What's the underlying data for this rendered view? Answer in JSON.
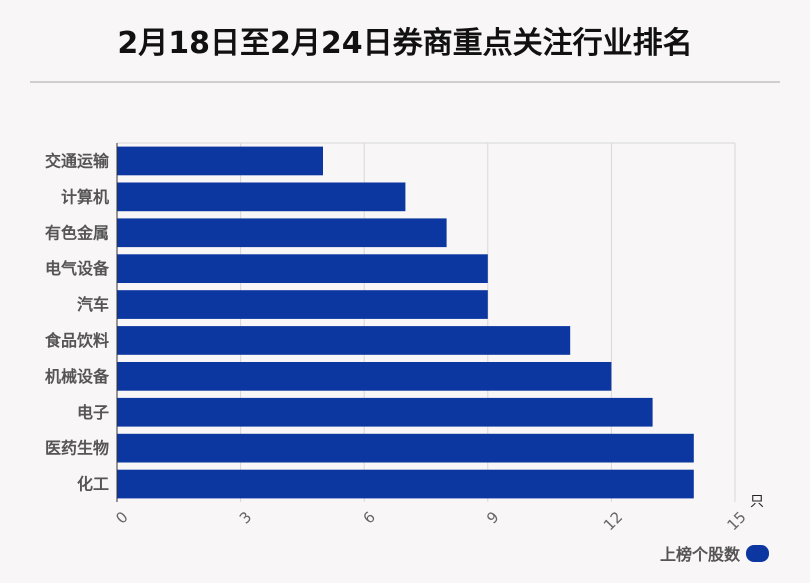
{
  "chart_data": {
    "type": "bar",
    "orientation": "horizontal",
    "title": "2月18日至2月24日券商重点关注行业排名",
    "categories": [
      "交通运输",
      "计算机",
      "有色金属",
      "电气设备",
      "汽车",
      "食品饮料",
      "机械设备",
      "电子",
      "医药生物",
      "化工"
    ],
    "series": [
      {
        "name": "上榜个股数",
        "values": [
          5,
          7,
          8,
          9,
          9,
          11,
          12,
          13,
          14,
          14
        ]
      }
    ],
    "xlim": [
      0,
      15
    ],
    "xticks": [
      "0",
      "3",
      "6",
      "9",
      "12",
      "15"
    ],
    "xunit": "只",
    "grid": true,
    "legend_position": "bottom-right",
    "bar_color": "#0d37a0"
  }
}
